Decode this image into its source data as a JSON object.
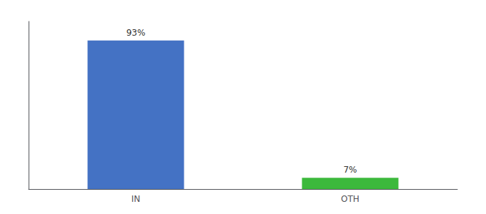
{
  "chart_data": {
    "type": "bar",
    "categories": [
      "IN",
      "OTH"
    ],
    "values": [
      93,
      7
    ],
    "value_labels": [
      "93%",
      "7%"
    ],
    "colors": [
      "#4472c4",
      "#3cb93c"
    ],
    "ylim": [
      0,
      105
    ],
    "data_labels": true,
    "tick_labels": "x",
    "grid": false
  }
}
